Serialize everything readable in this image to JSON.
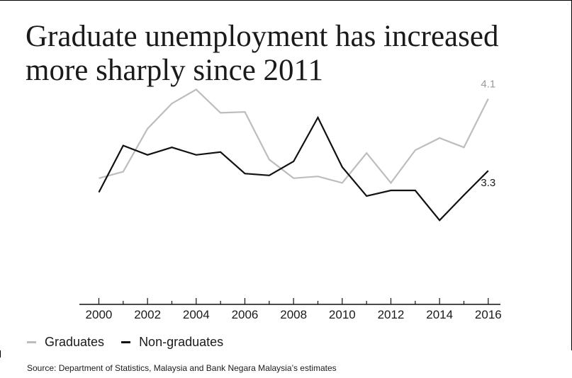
{
  "title_lines": [
    "Graduate unemployment has increased",
    "more sharply since 2011"
  ],
  "source": "Source: Department of Statistics, Malaysia and Bank Negara Malaysia’s estimates",
  "colors": {
    "graduates": "#bdbdbd",
    "non_graduates": "#111111",
    "axis": "#111111"
  },
  "chart_data": {
    "type": "line",
    "x": [
      2000,
      2001,
      2002,
      2003,
      2004,
      2005,
      2006,
      2007,
      2008,
      2009,
      2010,
      2011,
      2012,
      2013,
      2014,
      2015,
      2016
    ],
    "xticks": [
      "2000",
      "2002",
      "2004",
      "2006",
      "2008",
      "2010",
      "2012",
      "2014",
      "2016"
    ],
    "xlim": [
      1999.2,
      2016.5
    ],
    "ylim": [
      1.9,
      4.4
    ],
    "grid": false,
    "legend_position": "bottom-left",
    "series": [
      {
        "name": "Graduates",
        "values": [
          3.25,
          3.32,
          3.78,
          4.05,
          4.2,
          3.95,
          3.96,
          3.45,
          3.25,
          3.27,
          3.2,
          3.52,
          3.2,
          3.55,
          3.68,
          3.58,
          4.1
        ],
        "end_label": "4.1"
      },
      {
        "name": "Non-graduates",
        "values": [
          3.1,
          3.6,
          3.5,
          3.58,
          3.5,
          3.53,
          3.3,
          3.28,
          3.43,
          3.9,
          3.37,
          3.06,
          3.12,
          3.12,
          2.8,
          3.07,
          3.33
        ],
        "end_label": "3.3"
      }
    ]
  }
}
